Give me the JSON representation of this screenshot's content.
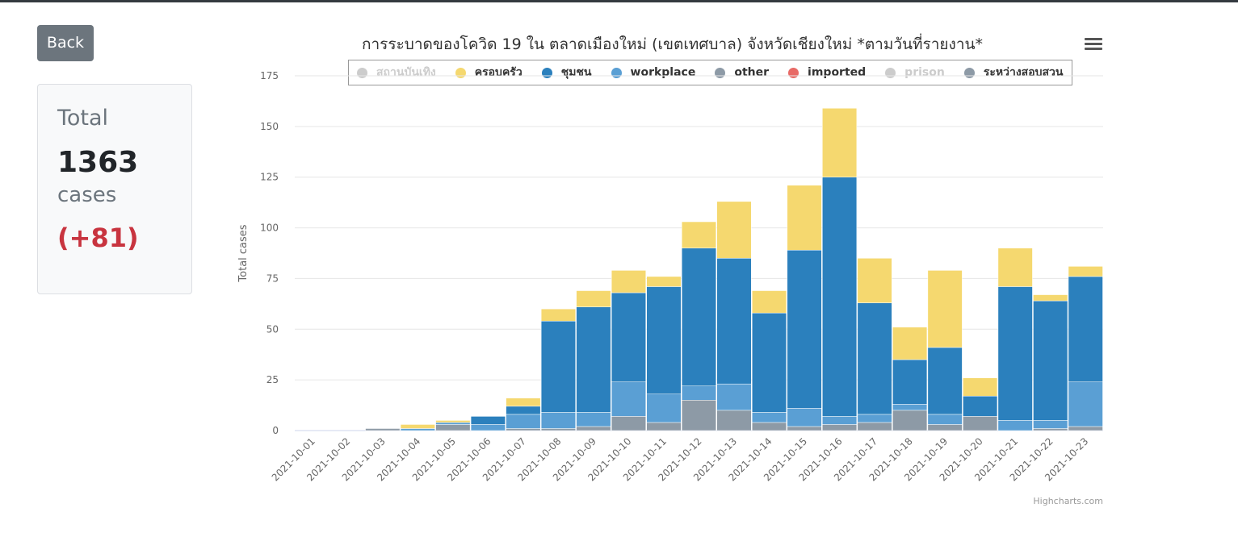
{
  "back_label": "Back",
  "total_card": {
    "title": "Total",
    "count": "1363",
    "unit": "cases",
    "delta": "(+81)"
  },
  "credits": "Highcharts.com",
  "chart_data": {
    "type": "bar",
    "stacked": true,
    "title": "การระบาดของโควิด 19 ใน ตลาดเมืองใหม่ (เขตเทศบาล) จังหวัดเชียงใหม่ *ตามวันที่รายงาน*",
    "xlabel": "",
    "ylabel": "Total cases",
    "ylim": [
      0,
      175
    ],
    "yticks": [
      0,
      25,
      50,
      75,
      100,
      125,
      150,
      175
    ],
    "grid": true,
    "legend_position": "top",
    "categories": [
      "2021-10-01",
      "2021-10-02",
      "2021-10-03",
      "2021-10-04",
      "2021-10-05",
      "2021-10-06",
      "2021-10-07",
      "2021-10-08",
      "2021-10-09",
      "2021-10-10",
      "2021-10-11",
      "2021-10-12",
      "2021-10-13",
      "2021-10-14",
      "2021-10-15",
      "2021-10-16",
      "2021-10-17",
      "2021-10-18",
      "2021-10-19",
      "2021-10-20",
      "2021-10-21",
      "2021-10-22",
      "2021-10-23"
    ],
    "series": [
      {
        "name": "สถานบันเทิง",
        "color": "#cccccc",
        "visible": false,
        "values": [
          0,
          0,
          0,
          0,
          0,
          0,
          0,
          0,
          0,
          0,
          0,
          0,
          0,
          0,
          0,
          0,
          0,
          0,
          0,
          0,
          0,
          0,
          0
        ]
      },
      {
        "name": "ระหว่างสอบสวน",
        "color": "#8d9aa6",
        "visible": true,
        "values": [
          0,
          0,
          1,
          0,
          3,
          0,
          0,
          1,
          2,
          7,
          4,
          15,
          10,
          4,
          2,
          3,
          4,
          10,
          3,
          7,
          0,
          1,
          2
        ]
      },
      {
        "name": "other",
        "color": "#8d9aa6",
        "visible": true,
        "values": [
          0,
          0,
          0,
          0,
          0,
          0,
          1,
          0,
          0,
          0,
          0,
          0,
          0,
          0,
          0,
          0,
          0,
          0,
          0,
          0,
          0,
          0,
          0
        ]
      },
      {
        "name": "imported",
        "color": "#e86a66",
        "visible": true,
        "values": [
          0,
          0,
          0,
          0,
          0,
          0,
          0,
          0,
          0,
          0,
          0,
          0,
          0,
          0,
          0,
          0,
          0,
          0,
          0,
          0,
          0,
          0,
          0
        ]
      },
      {
        "name": "prison",
        "color": "#cccccc",
        "visible": false,
        "values": [
          0,
          0,
          0,
          0,
          0,
          0,
          0,
          0,
          0,
          0,
          0,
          0,
          0,
          0,
          0,
          0,
          0,
          0,
          0,
          0,
          0,
          0,
          0
        ]
      },
      {
        "name": "workplace",
        "color": "#5a9fd4",
        "visible": true,
        "values": [
          0,
          0,
          0,
          1,
          1,
          3,
          7,
          8,
          7,
          17,
          14,
          7,
          13,
          5,
          9,
          4,
          4,
          3,
          5,
          0,
          5,
          4,
          22
        ]
      },
      {
        "name": "ชุมชน",
        "color": "#2b80bd",
        "visible": true,
        "values": [
          0,
          0,
          0,
          0,
          0,
          4,
          4,
          45,
          52,
          44,
          53,
          68,
          62,
          49,
          78,
          118,
          55,
          22,
          33,
          10,
          66,
          59,
          52
        ]
      },
      {
        "name": "ครอบครัว",
        "color": "#f5d86f",
        "visible": true,
        "values": [
          0,
          0,
          0,
          2,
          1,
          0,
          4,
          6,
          8,
          11,
          5,
          13,
          28,
          11,
          32,
          34,
          22,
          16,
          38,
          9,
          19,
          3,
          5
        ]
      }
    ],
    "legend_order": [
      "สถานบันเทิง",
      "ครอบครัว",
      "ชุมชน",
      "workplace",
      "other",
      "imported",
      "prison",
      "ระหว่างสอบสวน"
    ]
  }
}
